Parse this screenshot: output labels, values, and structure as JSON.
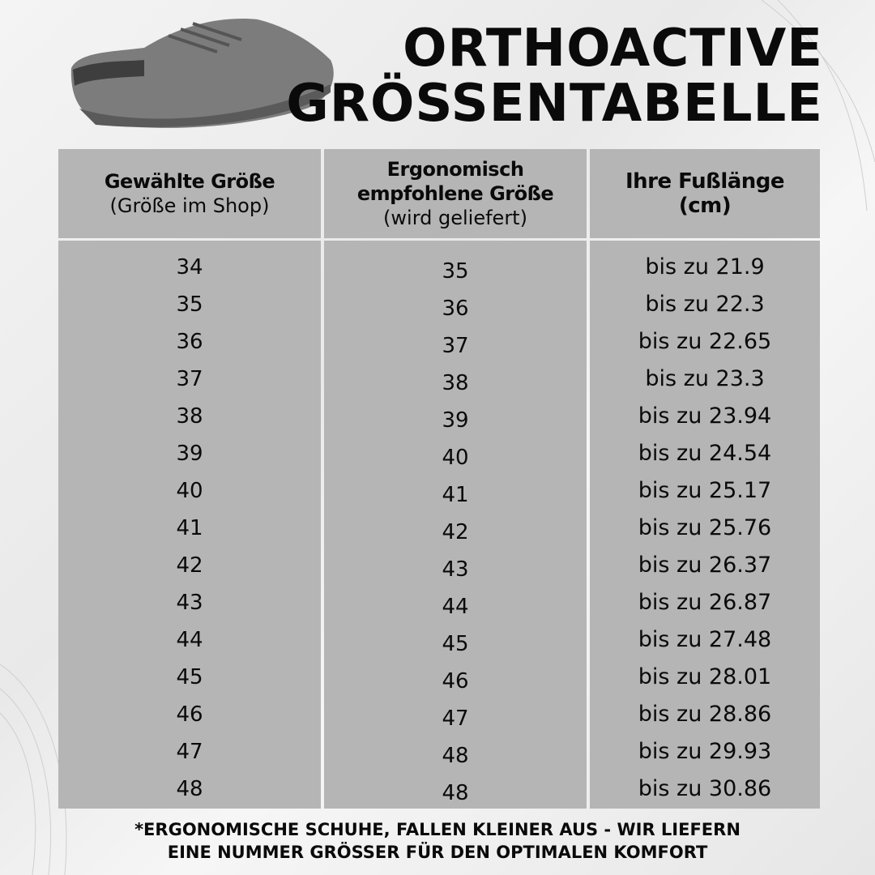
{
  "title": {
    "line1": "ORTHOACTIVE",
    "line2": "GRÖSSENTABELLE"
  },
  "headers": [
    {
      "title": "Gewählte Größe",
      "sub": "(Größe im Shop)"
    },
    {
      "title": "Ergonomisch empfohlene Größe",
      "sub": "(wird geliefert)"
    },
    {
      "title": "Ihre Fußlänge (cm)",
      "sub": ""
    }
  ],
  "rows": [
    [
      "34",
      "35",
      "bis zu 21.9"
    ],
    [
      "35",
      "36",
      "bis zu 22.3"
    ],
    [
      "36",
      "37",
      "bis zu 22.65"
    ],
    [
      "37",
      "38",
      "bis zu 23.3"
    ],
    [
      "38",
      "39",
      "bis zu 23.94"
    ],
    [
      "39",
      "40",
      "bis zu 24.54"
    ],
    [
      "40",
      "41",
      "bis zu 25.17"
    ],
    [
      "41",
      "42",
      "bis zu 25.76"
    ],
    [
      "42",
      "43",
      "bis zu 26.37"
    ],
    [
      "43",
      "44",
      "bis zu 26.87"
    ],
    [
      "44",
      "45",
      "bis zu 27.48"
    ],
    [
      "45",
      "46",
      "bis zu 28.01"
    ],
    [
      "46",
      "47",
      "bis zu 28.86"
    ],
    [
      "47",
      "48",
      "bis zu 29.93"
    ],
    [
      "48",
      "48",
      "bis zu 30.86"
    ]
  ],
  "footer": {
    "line1": "*ERGONOMISCHE SCHUHE, FALLEN KLEINER AUS - WIR LIEFERN",
    "line2": "EINE NUMMER GRÖSSER FÜR DEN OPTIMALEN KOMFORT"
  },
  "colors": {
    "cell": "#b5b5b5",
    "text": "#0a0a0a"
  }
}
